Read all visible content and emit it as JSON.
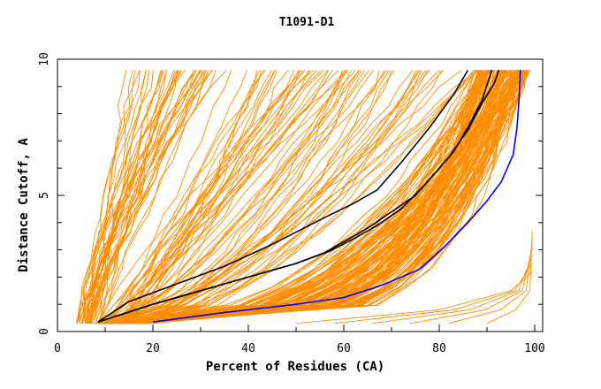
{
  "chart_data": {
    "type": "line",
    "title": "T1091-D1",
    "xlabel": "Percent of Residues (CA)",
    "ylabel": "Distance Cutoff, A",
    "xlim": [
      0,
      100
    ],
    "ylim": [
      0,
      10
    ],
    "x_ticks": [
      0,
      20,
      40,
      60,
      80,
      100
    ],
    "x_tick_labels": [
      "0",
      "20",
      "40",
      "60",
      "80",
      "100"
    ],
    "y_ticks": [
      0,
      5,
      10
    ],
    "y_tick_labels": [
      "0",
      "5",
      "10"
    ],
    "grid": false,
    "legend": "none",
    "colors": {
      "background_series": "#ff8c00",
      "highlight_a": "#000000",
      "highlight_b": "#000000",
      "best": "#0000ff"
    },
    "background_family_count": 240,
    "series": [
      {
        "role": "highlight_a",
        "points": [
          [
            8.5,
            0.35
          ],
          [
            15,
            1.1
          ],
          [
            25,
            1.75
          ],
          [
            35,
            2.4
          ],
          [
            45,
            3.2
          ],
          [
            55,
            4.1
          ],
          [
            62,
            4.7
          ],
          [
            67,
            5.2
          ],
          [
            72,
            6.2
          ],
          [
            78,
            7.5
          ],
          [
            83,
            8.7
          ],
          [
            86,
            9.6
          ]
        ]
      },
      {
        "role": "highlight_b",
        "points": [
          [
            8.5,
            0.35
          ],
          [
            20,
            1.0
          ],
          [
            30,
            1.5
          ],
          [
            40,
            2.0
          ],
          [
            50,
            2.5
          ],
          [
            56,
            2.9
          ],
          [
            60,
            3.3
          ],
          [
            65,
            3.8
          ],
          [
            70,
            4.4
          ],
          [
            75,
            5.0
          ],
          [
            79,
            5.8
          ],
          [
            83,
            6.6
          ],
          [
            86,
            7.5
          ],
          [
            89,
            8.5
          ],
          [
            91,
            9.6
          ]
        ]
      },
      {
        "role": "highlight_b",
        "points": [
          [
            8.5,
            0.35
          ],
          [
            20,
            1.0
          ],
          [
            30,
            1.5
          ],
          [
            40,
            2.0
          ],
          [
            50,
            2.5
          ],
          [
            57,
            2.95
          ],
          [
            62,
            3.4
          ],
          [
            67,
            3.9
          ],
          [
            72,
            4.5
          ],
          [
            77,
            5.4
          ],
          [
            82,
            6.4
          ],
          [
            86,
            7.4
          ],
          [
            89,
            8.4
          ],
          [
            91.5,
            9.1
          ],
          [
            92.5,
            9.6
          ]
        ]
      },
      {
        "role": "best",
        "points": [
          [
            20,
            0.35
          ],
          [
            35,
            0.7
          ],
          [
            50,
            1.0
          ],
          [
            60,
            1.25
          ],
          [
            68,
            1.7
          ],
          [
            76,
            2.3
          ],
          [
            81,
            3.1
          ],
          [
            86,
            4.0
          ],
          [
            90,
            4.8
          ],
          [
            93,
            5.5
          ],
          [
            95.5,
            6.5
          ],
          [
            96.3,
            7.5
          ],
          [
            96.7,
            8.5
          ],
          [
            97,
            9.6
          ]
        ]
      }
    ]
  }
}
